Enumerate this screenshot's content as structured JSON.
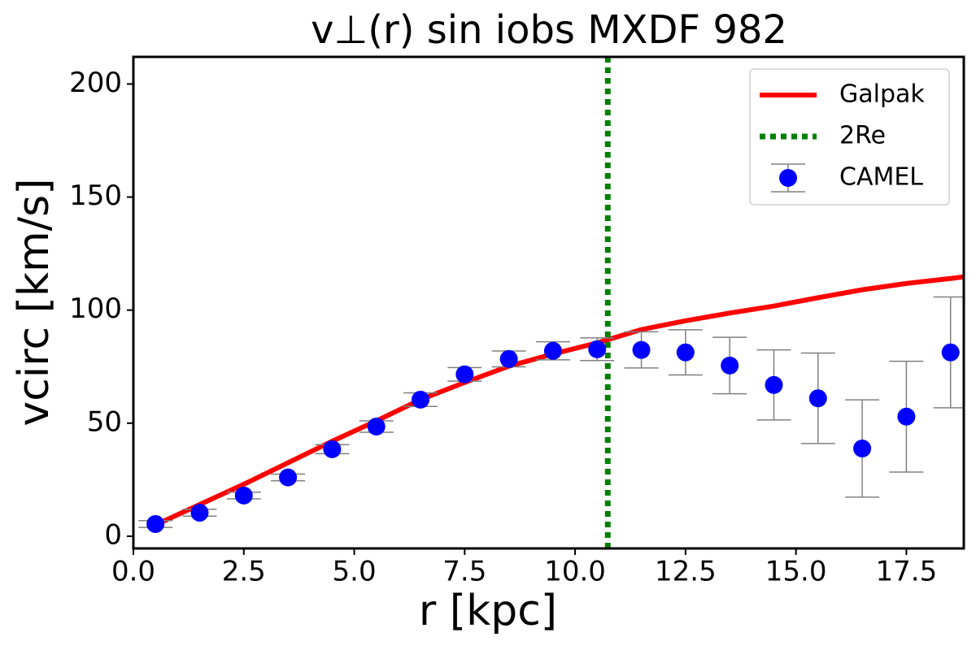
{
  "chart_data": {
    "type": "line",
    "title": "v⊥(r) sin iobs MXDF 982",
    "xlabel": "r [kpc]",
    "ylabel": "vcirc [km/s]",
    "xlim": [
      0,
      18.8
    ],
    "ylim": [
      -5.4,
      212
    ],
    "xticks": [
      {
        "value": 0,
        "label": "0.0"
      },
      2.5,
      {
        "value": 5,
        "label": "5.0"
      },
      7.5,
      {
        "value": 10,
        "label": "10.0"
      },
      12.5,
      {
        "value": 15,
        "label": "15.0"
      },
      17.5
    ],
    "yticks": [
      0,
      50,
      100,
      150,
      200
    ],
    "legend": "upper right",
    "series": [
      {
        "type": "line",
        "name": "Galpak",
        "color": "#ff0000",
        "x": [
          0.5,
          1.5,
          2.5,
          3.5,
          4.5,
          5.5,
          6.5,
          7.5,
          8.5,
          9.5,
          10.5,
          11.5,
          12.5,
          13.5,
          14.5,
          15.5,
          16.5,
          17.5,
          18.5,
          18.8
        ],
        "values": [
          5,
          14,
          23,
          32.5,
          42,
          51,
          60.4,
          68,
          75.2,
          80.6,
          85.5,
          91.4,
          95.3,
          98.7,
          101.8,
          105.5,
          109,
          111.8,
          114,
          114.7
        ]
      },
      {
        "type": "vline",
        "name": "2Re",
        "color": "#008000",
        "x": 10.74
      },
      {
        "type": "errorbar",
        "name": "CAMEL",
        "color": "#0000ff",
        "error_color": "#808080",
        "x": [
          0.5,
          1.5,
          2.5,
          3.5,
          4.5,
          5.5,
          6.5,
          7.5,
          8.5,
          9.5,
          10.5,
          11.5,
          12.5,
          13.5,
          14.5,
          15.5,
          16.5,
          17.5,
          18.5
        ],
        "values": [
          5.4,
          10.4,
          18,
          26,
          38.5,
          48.5,
          60.4,
          71.6,
          78.4,
          82,
          82.7,
          82.4,
          81.3,
          75.5,
          66.9,
          61,
          38.8,
          52.9,
          81.3
        ],
        "errors": [
          1.5,
          1.5,
          1.5,
          1.5,
          2,
          2.5,
          3,
          3,
          3.5,
          4,
          5,
          8,
          10,
          12.5,
          15.5,
          20,
          21.5,
          24.5,
          24.5
        ]
      }
    ]
  }
}
